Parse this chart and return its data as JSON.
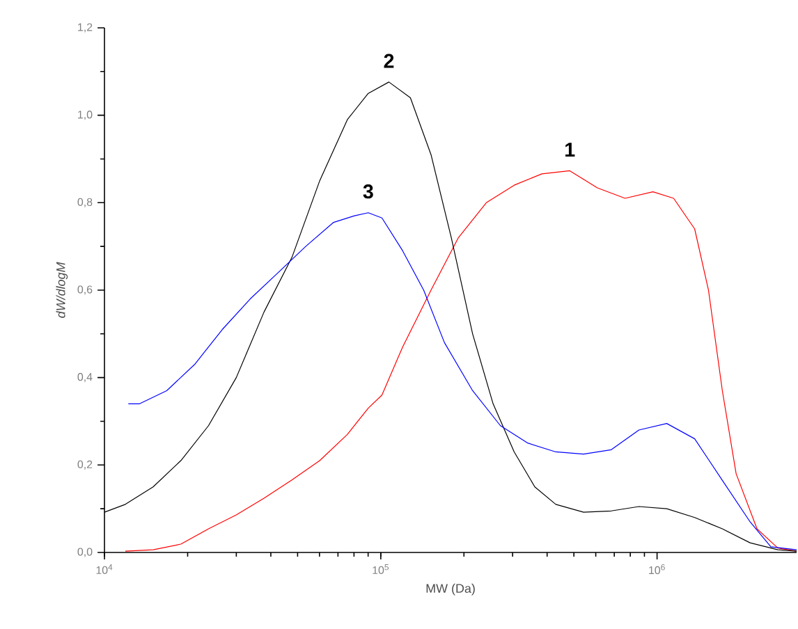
{
  "chart_data": {
    "type": "line",
    "xlabel": "MW (Da)",
    "ylabel": "*dW/dlogM*",
    "log": "x",
    "grid": false,
    "legend": false,
    "marker": "none",
    "line_style": "solid",
    "xlim": [
      10000,
      3200000
    ],
    "ylim": [
      0,
      1.2
    ],
    "xticks": [
      {
        "value": 10000,
        "label": "10$^{4}$"
      },
      {
        "value": 100000,
        "label": "10$^{5}$"
      },
      {
        "value": 1000000,
        "label": "10$^{6}$"
      }
    ],
    "yticks": [
      {
        "value": 0,
        "label": "0,0"
      },
      {
        "value": 0.2,
        "label": "0,2"
      },
      {
        "value": 0.4,
        "label": "0,4"
      },
      {
        "value": 0.6,
        "label": "0,6"
      },
      {
        "value": 0.8,
        "label": "0,8"
      },
      {
        "value": 1.0,
        "label": "1,0"
      },
      {
        "value": 1.2,
        "label": "1,2"
      }
    ],
    "series": [
      {
        "name": "1",
        "color": "#ff0000",
        "x": [
          11900,
          15000,
          18900,
          23800,
          30000,
          37800,
          47700,
          60100,
          75700,
          90100,
          101000,
          120000,
          152000,
          191000,
          241000,
          304000,
          383000,
          483000,
          608000,
          766000,
          966000,
          1148000,
          1368000,
          1535000,
          1723000,
          1933000,
          2300000,
          2736000,
          3200000
        ],
        "values": [
          0.003,
          0.006,
          0.019,
          0.054,
          0.086,
          0.124,
          0.166,
          0.21,
          0.27,
          0.33,
          0.36,
          0.47,
          0.6,
          0.72,
          0.8,
          0.84,
          0.866,
          0.873,
          0.834,
          0.81,
          0.825,
          0.81,
          0.74,
          0.6,
          0.37,
          0.18,
          0.054,
          0.01,
          0.003
        ]
      },
      {
        "name": "2",
        "color": "#000000",
        "x": [
          10000,
          11900,
          15000,
          18900,
          23800,
          30000,
          37800,
          47700,
          60100,
          75700,
          90100,
          107000,
          128000,
          152000,
          180000,
          215000,
          255000,
          304000,
          361000,
          430000,
          542000,
          683000,
          860000,
          1084000,
          1368000,
          1723000,
          2171000,
          2736000,
          3200000
        ],
        "values": [
          0.092,
          0.11,
          0.15,
          0.21,
          0.29,
          0.4,
          0.55,
          0.675,
          0.85,
          0.99,
          1.05,
          1.076,
          1.04,
          0.91,
          0.72,
          0.5,
          0.34,
          0.23,
          0.15,
          0.11,
          0.092,
          0.095,
          0.105,
          0.1,
          0.08,
          0.054,
          0.022,
          0.006,
          0.003
        ]
      },
      {
        "name": "3",
        "color": "#0000ff",
        "x": [
          12200,
          13400,
          16800,
          21200,
          26700,
          33700,
          42500,
          53500,
          67500,
          80300,
          90100,
          101000,
          120000,
          143000,
          170000,
          215000,
          271000,
          341000,
          430000,
          542000,
          683000,
          860000,
          1084000,
          1368000,
          1723000,
          2171000,
          2582000,
          3200000
        ],
        "values": [
          0.34,
          0.34,
          0.37,
          0.43,
          0.51,
          0.58,
          0.64,
          0.7,
          0.755,
          0.77,
          0.777,
          0.765,
          0.69,
          0.6,
          0.48,
          0.37,
          0.29,
          0.25,
          0.23,
          0.225,
          0.235,
          0.28,
          0.295,
          0.26,
          0.165,
          0.07,
          0.013,
          0.006
        ]
      }
    ]
  }
}
